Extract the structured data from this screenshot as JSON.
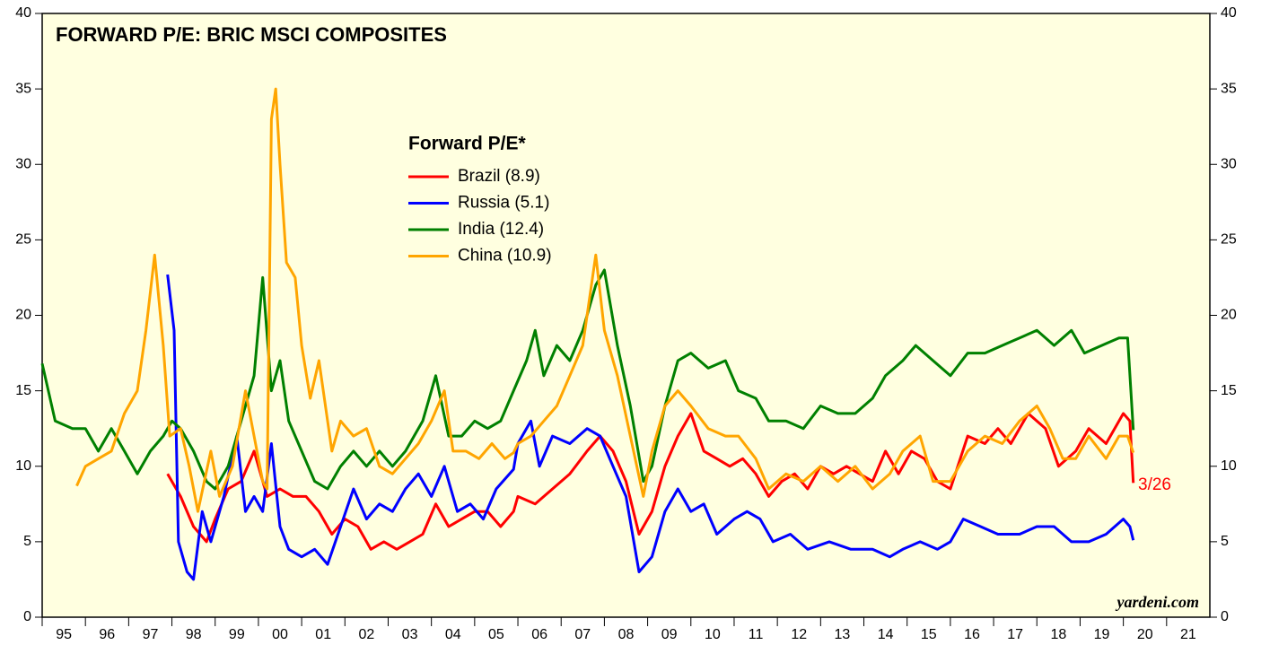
{
  "chart_data": {
    "type": "line",
    "title": "FORWARD P/E: BRIC MSCI COMPOSITES",
    "legend_title": "Forward P/E*",
    "annotations": [
      "3/26",
      "yardeni.com"
    ],
    "xlim": [
      1995,
      2022
    ],
    "xticks": [
      {
        "value": 1995,
        "label": "95"
      },
      {
        "value": 1996,
        "label": "96"
      },
      {
        "value": 1997,
        "label": "97"
      },
      {
        "value": 1998,
        "label": "98"
      },
      {
        "value": 1999,
        "label": "99"
      },
      {
        "value": 2000,
        "label": "00"
      },
      {
        "value": 2001,
        "label": "01"
      },
      {
        "value": 2002,
        "label": "02"
      },
      {
        "value": 2003,
        "label": "03"
      },
      {
        "value": 2004,
        "label": "04"
      },
      {
        "value": 2005,
        "label": "05"
      },
      {
        "value": 2006,
        "label": "06"
      },
      {
        "value": 2007,
        "label": "07"
      },
      {
        "value": 2008,
        "label": "08"
      },
      {
        "value": 2009,
        "label": "09"
      },
      {
        "value": 2010,
        "label": "10"
      },
      {
        "value": 2011,
        "label": "11"
      },
      {
        "value": 2012,
        "label": "12"
      },
      {
        "value": 2013,
        "label": "13"
      },
      {
        "value": 2014,
        "label": "14"
      },
      {
        "value": 2015,
        "label": "15"
      },
      {
        "value": 2016,
        "label": "16"
      },
      {
        "value": 2017,
        "label": "17"
      },
      {
        "value": 2018,
        "label": "18"
      },
      {
        "value": 2019,
        "label": "19"
      },
      {
        "value": 2020,
        "label": "20"
      },
      {
        "value": 2021,
        "label": "21"
      }
    ],
    "ylim": [
      0,
      40
    ],
    "yticks": [
      0,
      5,
      10,
      15,
      20,
      25,
      30,
      35,
      40
    ],
    "y2lim": [
      0,
      40
    ],
    "y2ticks": [
      0,
      5,
      10,
      15,
      20,
      25,
      30,
      35,
      40
    ],
    "series": [
      {
        "name": "Brazil (8.9)",
        "color": "#ff0000",
        "x": [
          1997.9,
          1998.2,
          1998.5,
          1998.8,
          1999.0,
          1999.3,
          1999.6,
          1999.9,
          2000.2,
          2000.5,
          2000.8,
          2001.1,
          2001.4,
          2001.7,
          2002.0,
          2002.3,
          2002.6,
          2002.9,
          2003.2,
          2003.5,
          2003.8,
          2004.1,
          2004.4,
          2004.7,
          2005.0,
          2005.3,
          2005.6,
          2005.9,
          2006.0,
          2006.4,
          2006.8,
          2007.2,
          2007.6,
          2007.9,
          2008.2,
          2008.5,
          2008.8,
          2009.1,
          2009.4,
          2009.7,
          2010.0,
          2010.3,
          2010.6,
          2010.9,
          2011.2,
          2011.5,
          2011.8,
          2012.1,
          2012.4,
          2012.7,
          2013.0,
          2013.3,
          2013.6,
          2013.9,
          2014.2,
          2014.5,
          2014.8,
          2015.1,
          2015.4,
          2015.7,
          2016.0,
          2016.4,
          2016.8,
          2017.1,
          2017.4,
          2017.8,
          2018.2,
          2018.5,
          2018.9,
          2019.2,
          2019.6,
          2020.0,
          2020.15,
          2020.23
        ],
        "values": [
          9.5,
          8,
          6,
          5,
          6.5,
          8.5,
          9,
          11,
          8,
          8.5,
          8,
          8,
          7,
          5.5,
          6.5,
          6,
          4.5,
          5,
          4.5,
          5,
          5.5,
          7.5,
          6,
          6.5,
          7,
          7,
          6,
          7,
          8,
          7.5,
          8.5,
          9.5,
          11,
          12,
          11,
          9,
          5.5,
          7,
          10,
          12,
          13.5,
          11,
          10.5,
          10,
          10.5,
          9.5,
          8,
          9,
          9.5,
          8.5,
          10,
          9.5,
          10,
          9.5,
          9,
          11,
          9.5,
          11,
          10.5,
          9,
          8.5,
          12,
          11.5,
          12.5,
          11.5,
          13.5,
          12.5,
          10,
          11,
          12.5,
          11.5,
          13.5,
          13,
          8.9
        ]
      },
      {
        "name": "Russia (5.1)",
        "color": "#0000ff",
        "x": [
          1997.9,
          1998.05,
          1998.15,
          1998.35,
          1998.5,
          1998.7,
          1998.9,
          1999.2,
          1999.5,
          1999.7,
          1999.9,
          2000.1,
          2000.3,
          2000.5,
          2000.7,
          2001.0,
          2001.3,
          2001.6,
          2001.9,
          2002.2,
          2002.5,
          2002.8,
          2003.1,
          2003.4,
          2003.7,
          2004.0,
          2004.3,
          2004.6,
          2004.9,
          2005.2,
          2005.5,
          2005.9,
          2006.0,
          2006.3,
          2006.5,
          2006.8,
          2007.2,
          2007.6,
          2007.9,
          2008.2,
          2008.5,
          2008.8,
          2009.1,
          2009.4,
          2009.7,
          2010.0,
          2010.3,
          2010.6,
          2011.0,
          2011.3,
          2011.6,
          2011.9,
          2012.3,
          2012.7,
          2013.2,
          2013.7,
          2014.2,
          2014.6,
          2014.9,
          2015.3,
          2015.7,
          2016.0,
          2016.3,
          2016.7,
          2017.1,
          2017.6,
          2018.0,
          2018.4,
          2018.8,
          2019.2,
          2019.6,
          2020.0,
          2020.15,
          2020.23
        ],
        "values": [
          22.7,
          19,
          5,
          3,
          2.5,
          7,
          5,
          8,
          12,
          7,
          8,
          7,
          11.5,
          6,
          4.5,
          4,
          4.5,
          3.5,
          6,
          8.5,
          6.5,
          7.5,
          7,
          8.5,
          9.5,
          8,
          10,
          7,
          7.5,
          6.5,
          8.5,
          9.8,
          11.5,
          13,
          10,
          12,
          11.5,
          12.5,
          12,
          10,
          8,
          3,
          4,
          7,
          8.5,
          7,
          7.5,
          5.5,
          6.5,
          7,
          6.5,
          5,
          5.5,
          4.5,
          5,
          4.5,
          4.5,
          4,
          4.5,
          5,
          4.5,
          5,
          6.5,
          6,
          5.5,
          5.5,
          6,
          6,
          5,
          5,
          5.5,
          6.5,
          6,
          5.1
        ]
      },
      {
        "name": "India (12.4)",
        "color": "#008000",
        "x": [
          1995.0,
          1995.3,
          1995.7,
          1996.0,
          1996.3,
          1996.6,
          1996.9,
          1997.2,
          1997.5,
          1997.8,
          1998.0,
          1998.2,
          1998.5,
          1998.8,
          1999.0,
          1999.3,
          1999.6,
          1999.9,
          2000.1,
          2000.3,
          2000.5,
          2000.7,
          2001.0,
          2001.3,
          2001.6,
          2001.9,
          2002.2,
          2002.5,
          2002.8,
          2003.1,
          2003.4,
          2003.8,
          2004.1,
          2004.4,
          2004.7,
          2005.0,
          2005.3,
          2005.6,
          2005.9,
          2006.2,
          2006.4,
          2006.6,
          2006.9,
          2007.2,
          2007.5,
          2007.8,
          2008.0,
          2008.3,
          2008.6,
          2008.9,
          2009.1,
          2009.4,
          2009.7,
          2010.0,
          2010.4,
          2010.8,
          2011.1,
          2011.5,
          2011.8,
          2012.2,
          2012.6,
          2013.0,
          2013.4,
          2013.8,
          2014.2,
          2014.5,
          2014.9,
          2015.2,
          2015.6,
          2016.0,
          2016.4,
          2016.8,
          2017.2,
          2017.6,
          2018.0,
          2018.4,
          2018.8,
          2019.1,
          2019.5,
          2019.9,
          2020.1,
          2020.23
        ],
        "values": [
          16.8,
          13,
          12.5,
          12.5,
          11,
          12.5,
          11,
          9.5,
          11,
          12,
          13,
          12.5,
          11,
          9,
          8.5,
          10,
          13,
          16,
          22.5,
          15,
          17,
          13,
          11,
          9,
          8.5,
          10,
          11,
          10,
          11,
          10,
          11,
          13,
          16,
          12,
          12,
          13,
          12.5,
          13,
          15,
          17,
          19,
          16,
          18,
          17,
          19,
          22,
          23,
          18,
          14,
          9,
          10,
          14,
          17,
          17.5,
          16.5,
          17,
          15,
          14.5,
          13,
          13,
          12.5,
          14,
          13.5,
          13.5,
          14.5,
          16,
          17,
          18,
          17,
          16,
          17.5,
          17.5,
          18,
          18.5,
          19,
          18,
          19,
          17.5,
          18,
          18.5,
          18.5,
          12.4
        ]
      },
      {
        "name": "China (10.9)",
        "color": "#ffa500",
        "x": [
          1995.8,
          1996.0,
          1996.3,
          1996.6,
          1996.9,
          1997.2,
          1997.4,
          1997.6,
          1997.8,
          1997.95,
          1998.2,
          1998.4,
          1998.6,
          1998.9,
          1999.1,
          1999.4,
          1999.7,
          1999.9,
          2000.1,
          2000.2,
          2000.3,
          2000.4,
          2000.5,
          2000.65,
          2000.85,
          2001.0,
          2001.2,
          2001.4,
          2001.7,
          2001.9,
          2002.2,
          2002.5,
          2002.8,
          2003.1,
          2003.4,
          2003.7,
          2004.0,
          2004.3,
          2004.5,
          2004.8,
          2005.1,
          2005.4,
          2005.7,
          2005.9,
          2006.0,
          2006.3,
          2006.6,
          2006.9,
          2007.2,
          2007.5,
          2007.8,
          2008.0,
          2008.3,
          2008.6,
          2008.9,
          2009.1,
          2009.4,
          2009.7,
          2010.0,
          2010.4,
          2010.8,
          2011.1,
          2011.5,
          2011.8,
          2012.2,
          2012.6,
          2013.0,
          2013.4,
          2013.8,
          2014.2,
          2014.6,
          2014.9,
          2015.3,
          2015.6,
          2016.0,
          2016.4,
          2016.8,
          2017.2,
          2017.6,
          2018.0,
          2018.3,
          2018.6,
          2018.9,
          2019.2,
          2019.6,
          2019.9,
          2020.1,
          2020.23
        ],
        "values": [
          8.7,
          10,
          10.5,
          11,
          13.5,
          15,
          19,
          24,
          18,
          12,
          12.5,
          10,
          7,
          11,
          8,
          10,
          15,
          12,
          9,
          8.5,
          33,
          35,
          30,
          23.5,
          22.5,
          18,
          14.5,
          17,
          11,
          13,
          12,
          12.5,
          10,
          9.5,
          10.5,
          11.5,
          13,
          15,
          11,
          11,
          10.5,
          11.5,
          10.5,
          10.9,
          11.5,
          12,
          13,
          14,
          16,
          18,
          24,
          19,
          16,
          12,
          8,
          11,
          14,
          15,
          14,
          12.5,
          12,
          12,
          10.5,
          8.5,
          9.5,
          9,
          10,
          9,
          10,
          8.5,
          9.5,
          11,
          12,
          9,
          9,
          11,
          12,
          11.5,
          13,
          14,
          12.5,
          10.5,
          10.5,
          12,
          10.5,
          12,
          12,
          10.9
        ]
      }
    ]
  }
}
